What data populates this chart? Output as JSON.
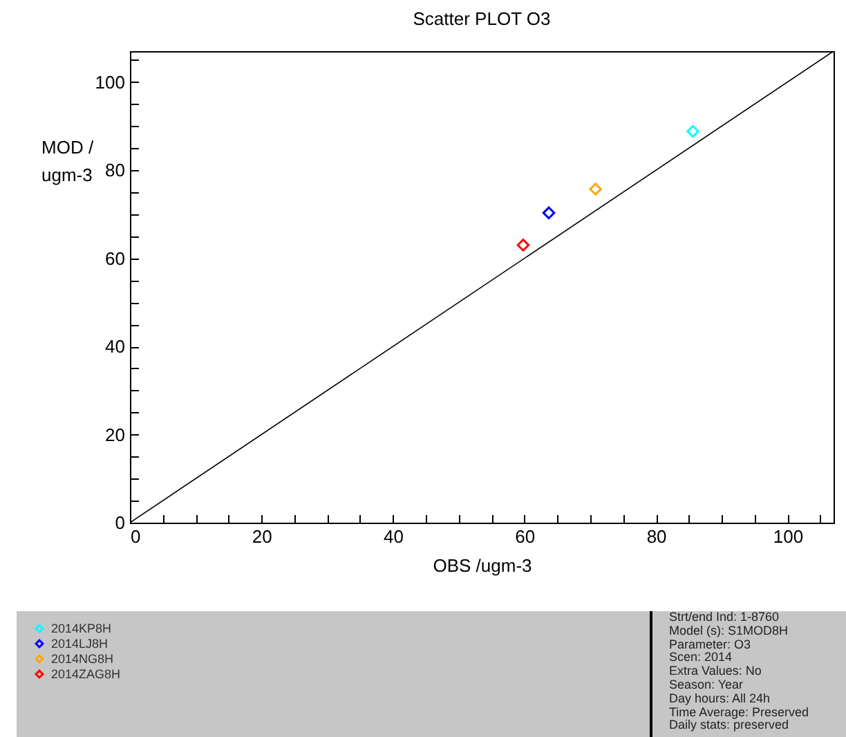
{
  "chart_data": {
    "type": "scatter",
    "title": "Scatter PLOT   O3",
    "xlabel": "OBS /ugm-3",
    "ylabel": "MOD / ugm-3",
    "xlim": [
      0,
      107
    ],
    "ylim": [
      0,
      107
    ],
    "xticks": [
      0,
      {
        "value": 5,
        "label": null
      },
      {
        "value": 10,
        "label": null
      },
      {
        "value": 15,
        "label": null
      },
      20,
      {
        "value": 25,
        "label": null
      },
      {
        "value": 30,
        "label": null
      },
      {
        "value": 35,
        "label": null
      },
      40,
      {
        "value": 45,
        "label": null
      },
      {
        "value": 50,
        "label": null
      },
      {
        "value": 55,
        "label": null
      },
      60,
      {
        "value": 65,
        "label": null
      },
      {
        "value": 70,
        "label": null
      },
      {
        "value": 75,
        "label": null
      },
      80,
      {
        "value": 85,
        "label": null
      },
      {
        "value": 90,
        "label": null
      },
      {
        "value": 95,
        "label": null
      },
      100,
      {
        "value": 105,
        "label": null
      }
    ],
    "yticks": [
      0,
      {
        "value": 5,
        "label": null
      },
      {
        "value": 10,
        "label": null
      },
      {
        "value": 15,
        "label": null
      },
      20,
      {
        "value": 25,
        "label": null
      },
      {
        "value": 30,
        "label": null
      },
      {
        "value": 35,
        "label": null
      },
      40,
      {
        "value": 45,
        "label": null
      },
      {
        "value": 50,
        "label": null
      },
      {
        "value": 55,
        "label": null
      },
      60,
      {
        "value": 65,
        "label": null
      },
      {
        "value": 70,
        "label": null
      },
      {
        "value": 75,
        "label": null
      },
      80,
      {
        "value": 85,
        "label": null
      },
      {
        "value": 90,
        "label": null
      },
      {
        "value": 95,
        "label": null
      },
      100,
      {
        "value": 105,
        "label": null
      }
    ],
    "grid": false,
    "legend": "bottom left",
    "series": [
      {
        "name": "2014KP8H",
        "marker": "diamond",
        "color": "#00ffff",
        "x": [
          85.6
        ],
        "values": [
          88.8
        ]
      },
      {
        "name": "2014LJ8H",
        "marker": "diamond",
        "color": "#0000ff",
        "x": [
          63.7
        ],
        "values": [
          70.3
        ]
      },
      {
        "name": "2014NG8H",
        "marker": "diamond",
        "color": "#ffa500",
        "x": [
          70.8
        ],
        "values": [
          75.7
        ]
      },
      {
        "name": "2014ZAG8H",
        "marker": "diamond",
        "color": "#ff0000",
        "x": [
          59.8
        ],
        "values": [
          63.0
        ]
      },
      {
        "type": "line",
        "color": "#000000",
        "x": [
          0,
          107
        ],
        "values": [
          0,
          107
        ]
      }
    ],
    "annotations": [
      "Strt/end Ind: 1-8760",
      "Model (s): S1MOD8H",
      "Parameter: O3",
      "Scen: 2014",
      "Extra Values: No",
      "Season: Year",
      "Day hours: All 24h",
      "Time Average: Preserved",
      "Daily stats: preserved"
    ]
  }
}
